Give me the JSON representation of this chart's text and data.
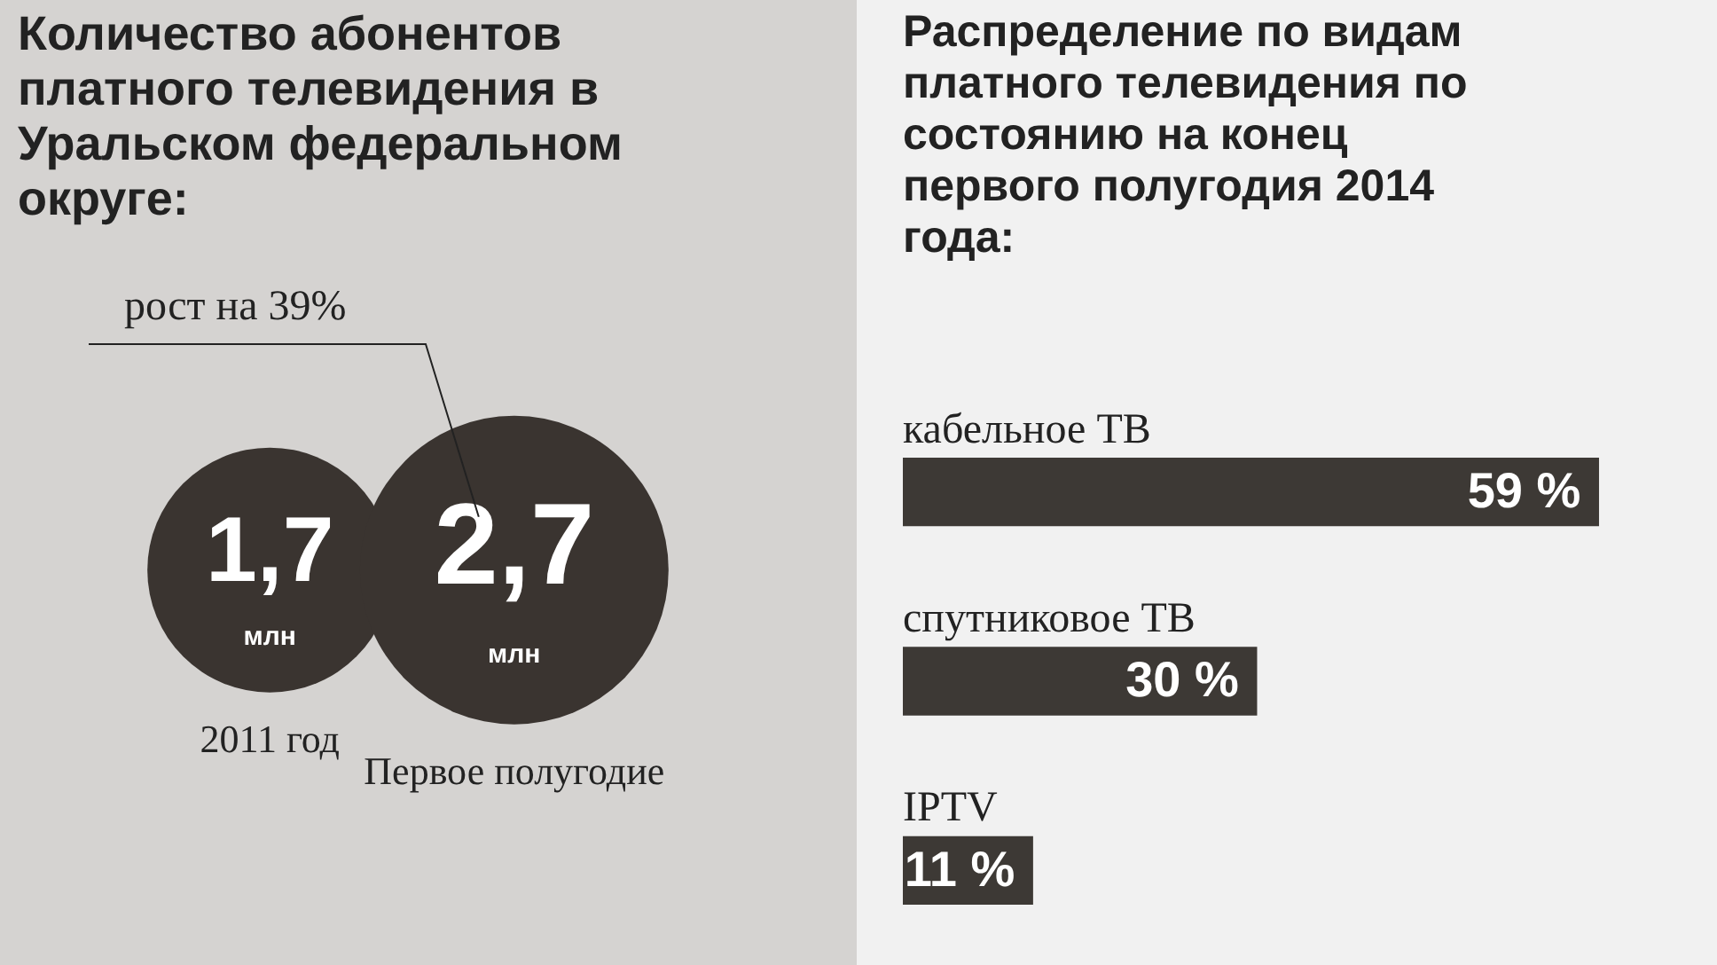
{
  "chart_data": [
    {
      "type": "other",
      "title": "Количество абонентов платного телевидения в Уральском федеральном округе:",
      "categories": [
        "2011 год",
        "Первое полугодие"
      ],
      "values": [
        1.7,
        2.7
      ],
      "value_labels": [
        "1,7",
        "2,7"
      ],
      "ylabel": "млн",
      "color": "#3a3430",
      "annotations": [
        "рост на 39%"
      ]
    },
    {
      "type": "bar",
      "orientation": "horizontal",
      "title": "Распределение по видам платного телевидения по состоянию на конец первого полугодия 2014 года:",
      "categories": [
        "кабельное ТВ",
        "спутниковое ТВ",
        "IPTV"
      ],
      "values": [
        59,
        30,
        11
      ],
      "color": "#3d3935",
      "value_labels": [
        "59 %",
        "30 %",
        "11 %"
      ]
    }
  ]
}
